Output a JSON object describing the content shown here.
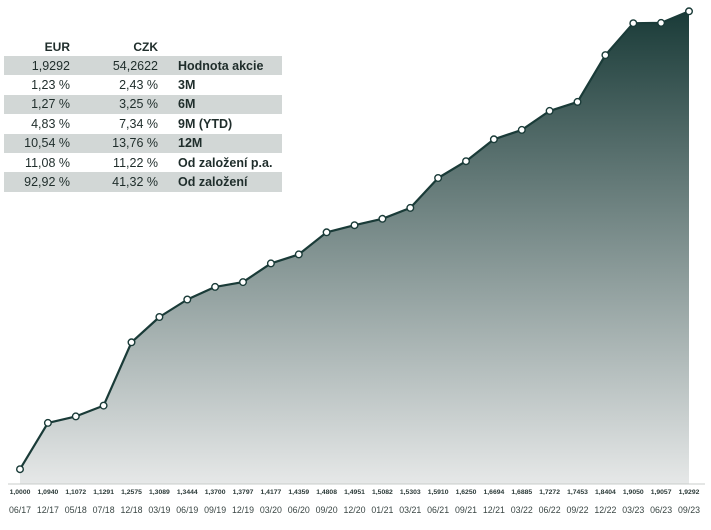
{
  "table": {
    "headers": [
      "EUR",
      "CZK",
      ""
    ],
    "rows": [
      {
        "eur": "1,9292",
        "czk": "54,2622",
        "label": "Hodnota akcie"
      },
      {
        "eur": "1,23 %",
        "czk": "2,43 %",
        "label": "3M"
      },
      {
        "eur": "1,27 %",
        "czk": "3,25 %",
        "label": "6M"
      },
      {
        "eur": "4,83 %",
        "czk": "7,34 %",
        "label": "9M (YTD)"
      },
      {
        "eur": "10,54 %",
        "czk": "13,76 %",
        "label": "12M"
      },
      {
        "eur": "11,08 %",
        "czk": "11,22 %",
        "label": "Od založení p.a."
      },
      {
        "eur": "92,92 %",
        "czk": "41,32 %",
        "label": "Od založení"
      }
    ]
  },
  "chart_data": {
    "type": "area",
    "x": [
      "06/17",
      "12/17",
      "05/18",
      "07/18",
      "12/18",
      "03/19",
      "06/19",
      "09/19",
      "12/19",
      "03/20",
      "06/20",
      "09/20",
      "12/20",
      "01/21",
      "03/21",
      "06/21",
      "09/21",
      "12/21",
      "03/22",
      "06/22",
      "09/22",
      "12/22",
      "03/23",
      "06/23",
      "09/23"
    ],
    "values": [
      1.0,
      1.094,
      1.1072,
      1.1291,
      1.2575,
      1.3089,
      1.3444,
      1.37,
      1.3797,
      1.4177,
      1.4359,
      1.4808,
      1.4951,
      1.5082,
      1.5303,
      1.591,
      1.625,
      1.6694,
      1.6885,
      1.7272,
      1.7453,
      1.8404,
      1.905,
      1.9057,
      1.9292
    ],
    "value_labels": [
      "1,0000",
      "1,0940",
      "1,1072",
      "1,1291",
      "1,2575",
      "1,3089",
      "1,3444",
      "1,3700",
      "1,3797",
      "1,4177",
      "1,4359",
      "1,4808",
      "1,4951",
      "1,5082",
      "1,5303",
      "1,5910",
      "1,6250",
      "1,6694",
      "1,6885",
      "1,7272",
      "1,7453",
      "1,8404",
      "1,9050",
      "1,9057",
      "1,9292"
    ],
    "ylim": [
      0.97,
      1.94
    ],
    "grid": false,
    "colors": {
      "line": "#1a3b38",
      "fill_top": "#1a3b38",
      "fill_bottom": "#e6e8e8",
      "marker_fill": "#ffffff",
      "axis": "#c8cccb"
    }
  }
}
